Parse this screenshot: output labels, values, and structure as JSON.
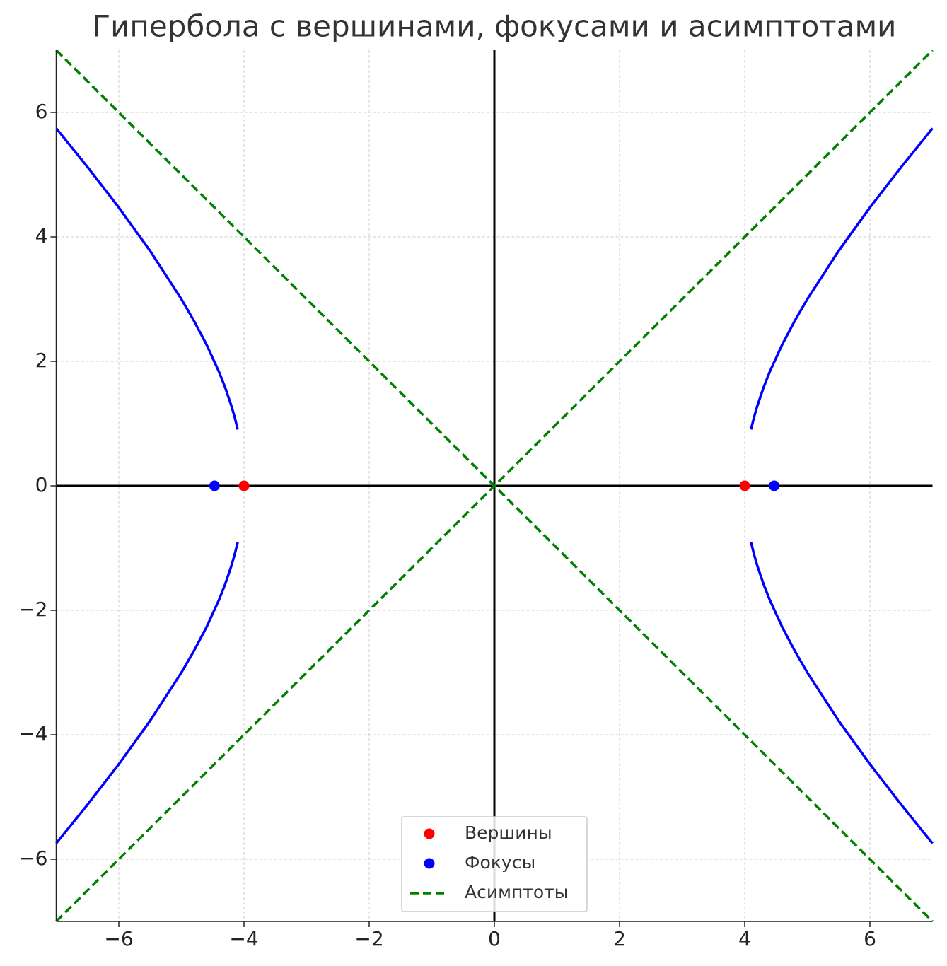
{
  "chart_data": {
    "type": "line",
    "title": "Гипербола с вершинами, фокусами и асимптотами",
    "xlim": [
      -7,
      7
    ],
    "ylim": [
      -7,
      7
    ],
    "xticks": [
      {
        "value": -6,
        "label": "−6"
      },
      {
        "value": -4,
        "label": "−4"
      },
      {
        "value": -2,
        "label": "−2"
      },
      0,
      2,
      4,
      6
    ],
    "yticks": [
      {
        "value": -6,
        "label": "−6"
      },
      {
        "value": -4,
        "label": "−4"
      },
      {
        "value": -2,
        "label": "−2"
      },
      0,
      2,
      4,
      6
    ],
    "grid": true,
    "legend": "lower center",
    "series": [
      {
        "color": "#0000ff",
        "style": "solid",
        "x": [
          4.1,
          4.15,
          4.2,
          4.3,
          4.4,
          4.6,
          4.8,
          5,
          5.5,
          6,
          6.5,
          7
        ],
        "values": [
          0.906,
          1.106,
          1.281,
          1.578,
          1.833,
          2.272,
          2.653,
          3,
          3.775,
          4.472,
          5.123,
          5.745
        ]
      },
      {
        "color": "#0000ff",
        "style": "solid",
        "x": [
          4.1,
          4.15,
          4.2,
          4.3,
          4.4,
          4.6,
          4.8,
          5,
          5.5,
          6,
          6.5,
          7
        ],
        "values": [
          -0.906,
          -1.106,
          -1.281,
          -1.578,
          -1.833,
          -2.272,
          -2.653,
          -3,
          -3.775,
          -4.472,
          -5.123,
          -5.745
        ]
      },
      {
        "color": "#0000ff",
        "style": "solid",
        "x": [
          -4.1,
          -4.15,
          -4.2,
          -4.3,
          -4.4,
          -4.6,
          -4.8,
          -5,
          -5.5,
          -6,
          -6.5,
          -7
        ],
        "values": [
          0.906,
          1.106,
          1.281,
          1.578,
          1.833,
          2.272,
          2.653,
          3,
          3.775,
          4.472,
          5.123,
          5.745
        ]
      },
      {
        "color": "#0000ff",
        "style": "solid",
        "x": [
          -4.1,
          -4.15,
          -4.2,
          -4.3,
          -4.4,
          -4.6,
          -4.8,
          -5,
          -5.5,
          -6,
          -6.5,
          -7
        ],
        "values": [
          -0.906,
          -1.106,
          -1.281,
          -1.578,
          -1.833,
          -2.272,
          -2.653,
          -3,
          -3.775,
          -4.472,
          -5.123,
          -5.745
        ]
      },
      {
        "name": "Вершины",
        "color": "#ff0000",
        "style": "markers",
        "x": [
          -4,
          4
        ],
        "values": [
          0,
          0
        ]
      },
      {
        "name": "Фокусы",
        "color": "#0000ff",
        "style": "markers",
        "x": [
          -4.47,
          4.47
        ],
        "values": [
          0,
          0
        ]
      },
      {
        "name": "Асимптоты",
        "color": "#008000",
        "style": "dashed",
        "x": [
          -7,
          7,
          0,
          -7,
          7
        ],
        "values": [
          -7,
          7,
          null,
          7,
          -7
        ]
      }
    ]
  }
}
